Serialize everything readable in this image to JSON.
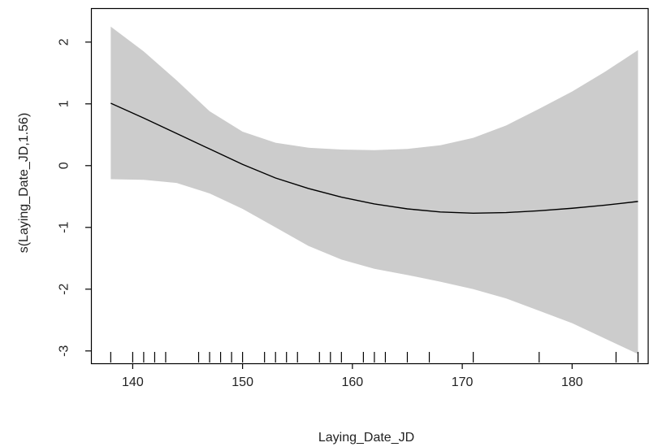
{
  "chart_data": {
    "type": "line",
    "title": "",
    "xlabel": "Laying_Date_JD",
    "ylabel": "s(Laying_Date_JD,1.56)",
    "xlim": [
      136.2,
      187.0
    ],
    "ylim": [
      -3.2,
      2.55
    ],
    "x_ticks": [
      140,
      150,
      160,
      170,
      180
    ],
    "y_ticks": [
      -3,
      -2,
      -1,
      0,
      1,
      2
    ],
    "grid": false,
    "series": [
      {
        "role": "fit",
        "color": "#000000",
        "points": [
          [
            138,
            1.01
          ],
          [
            141,
            0.77
          ],
          [
            144,
            0.52
          ],
          [
            147,
            0.27
          ],
          [
            150,
            0.02
          ],
          [
            153,
            -0.2
          ],
          [
            156,
            -0.37
          ],
          [
            159,
            -0.51
          ],
          [
            162,
            -0.62
          ],
          [
            165,
            -0.7
          ],
          [
            168,
            -0.75
          ],
          [
            171,
            -0.77
          ],
          [
            174,
            -0.76
          ],
          [
            177,
            -0.73
          ],
          [
            180,
            -0.69
          ],
          [
            183,
            -0.64
          ],
          [
            186,
            -0.58
          ]
        ]
      },
      {
        "role": "confidence-band",
        "color": "#cccccc",
        "upper": [
          [
            138,
            2.25
          ],
          [
            141,
            1.85
          ],
          [
            144,
            1.38
          ],
          [
            147,
            0.88
          ],
          [
            150,
            0.55
          ],
          [
            153,
            0.37
          ],
          [
            156,
            0.29
          ],
          [
            159,
            0.26
          ],
          [
            162,
            0.25
          ],
          [
            165,
            0.27
          ],
          [
            168,
            0.33
          ],
          [
            171,
            0.45
          ],
          [
            174,
            0.65
          ],
          [
            177,
            0.92
          ],
          [
            180,
            1.2
          ],
          [
            183,
            1.52
          ],
          [
            186,
            1.87
          ]
        ],
        "lower": [
          [
            138,
            -0.22
          ],
          [
            141,
            -0.23
          ],
          [
            144,
            -0.28
          ],
          [
            147,
            -0.45
          ],
          [
            150,
            -0.7
          ],
          [
            153,
            -1.0
          ],
          [
            156,
            -1.3
          ],
          [
            159,
            -1.52
          ],
          [
            162,
            -1.67
          ],
          [
            165,
            -1.77
          ],
          [
            168,
            -1.88
          ],
          [
            171,
            -2.0
          ],
          [
            174,
            -2.15
          ],
          [
            177,
            -2.35
          ],
          [
            180,
            -2.55
          ],
          [
            183,
            -2.8
          ],
          [
            186,
            -3.05
          ]
        ]
      }
    ],
    "rug": [
      138,
      140,
      141,
      142,
      143,
      146,
      147,
      148,
      149,
      150,
      152,
      153,
      154,
      155,
      157,
      158,
      159,
      161,
      162,
      163,
      165,
      167,
      171,
      177,
      184,
      186
    ]
  }
}
